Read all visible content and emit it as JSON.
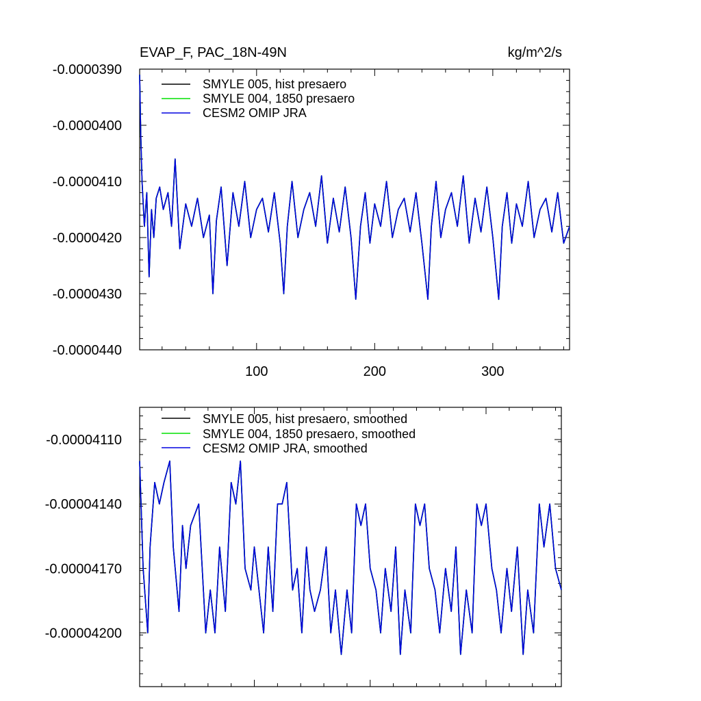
{
  "chart_data": [
    {
      "type": "line",
      "title": "EVAP_F, PAC_18N-49N",
      "units": "kg/m^2/s",
      "xlabel": "",
      "ylabel": "",
      "xlim": [
        1,
        365
      ],
      "ylim": [
        -4.4e-05,
        -3.9e-05
      ],
      "xticks": [
        100,
        200,
        300
      ],
      "xtick_labels": [
        "100",
        "200",
        "300"
      ],
      "yticks": [
        -3.9e-05,
        -4e-05,
        -4.1e-05,
        -4.2e-05,
        -4.3e-05,
        -4.4e-05
      ],
      "ytick_labels": [
        "-0.0000390",
        "-0.0000400",
        "-0.0000410",
        "-0.0000420",
        "-0.0000430",
        "-0.0000440"
      ],
      "legend_position": "top-left",
      "series": [
        {
          "name": "SMYLE 005, hist presaero",
          "color": "#000000"
        },
        {
          "name": "SMYLE 004, 1850 presaero",
          "color": "#00e000"
        },
        {
          "name": "CESM2 OMIP JRA",
          "color": "#0000e0"
        }
      ],
      "series_values_note": "",
      "keypoints": {
        "x": [
          1,
          2,
          3,
          5,
          7,
          9,
          11,
          13,
          15,
          18,
          21,
          25,
          28,
          31,
          35,
          40,
          45,
          50,
          55,
          60,
          63,
          66,
          70,
          75,
          80,
          85,
          90,
          95,
          100,
          105,
          110,
          115,
          120,
          123,
          126,
          130,
          135,
          140,
          145,
          150,
          155,
          160,
          165,
          170,
          175,
          180,
          184,
          188,
          192,
          196,
          200,
          205,
          210,
          215,
          220,
          225,
          230,
          235,
          240,
          245,
          248,
          252,
          256,
          260,
          265,
          270,
          275,
          280,
          285,
          290,
          295,
          300,
          305,
          308,
          312,
          316,
          320,
          325,
          330,
          335,
          340,
          345,
          350,
          355,
          360,
          365
        ],
        "y": [
          -3.91e-05,
          -4.02e-05,
          -4.1e-05,
          -4.18e-05,
          -4.12e-05,
          -4.27e-05,
          -4.15e-05,
          -4.2e-05,
          -4.13e-05,
          -4.11e-05,
          -4.15e-05,
          -4.12e-05,
          -4.18e-05,
          -4.06e-05,
          -4.22e-05,
          -4.14e-05,
          -4.18e-05,
          -4.13e-05,
          -4.2e-05,
          -4.16e-05,
          -4.3e-05,
          -4.17e-05,
          -4.11e-05,
          -4.25e-05,
          -4.12e-05,
          -4.18e-05,
          -4.1e-05,
          -4.2e-05,
          -4.15e-05,
          -4.13e-05,
          -4.19e-05,
          -4.12e-05,
          -4.21e-05,
          -4.3e-05,
          -4.18e-05,
          -4.1e-05,
          -4.2e-05,
          -4.15e-05,
          -4.12e-05,
          -4.18e-05,
          -4.09e-05,
          -4.21e-05,
          -4.13e-05,
          -4.19e-05,
          -4.11e-05,
          -4.2e-05,
          -4.31e-05,
          -4.18e-05,
          -4.12e-05,
          -4.21e-05,
          -4.14e-05,
          -4.18e-05,
          -4.1e-05,
          -4.2e-05,
          -4.15e-05,
          -4.13e-05,
          -4.19e-05,
          -4.12e-05,
          -4.21e-05,
          -4.31e-05,
          -4.18e-05,
          -4.1e-05,
          -4.2e-05,
          -4.15e-05,
          -4.12e-05,
          -4.18e-05,
          -4.09e-05,
          -4.21e-05,
          -4.13e-05,
          -4.19e-05,
          -4.11e-05,
          -4.2e-05,
          -4.31e-05,
          -4.18e-05,
          -4.12e-05,
          -4.21e-05,
          -4.14e-05,
          -4.18e-05,
          -4.1e-05,
          -4.2e-05,
          -4.15e-05,
          -4.13e-05,
          -4.19e-05,
          -4.12e-05,
          -4.21e-05,
          -4.18e-05
        ]
      }
    },
    {
      "type": "line",
      "title": "",
      "xlabel": "",
      "ylabel": "",
      "xlim": [
        1,
        365
      ],
      "ylim": [
        -4.225e-05,
        -4.095e-05
      ],
      "xticks": [
        100,
        200,
        300
      ],
      "xtick_labels": [],
      "yticks": [
        -4.11e-05,
        -4.14e-05,
        -4.17e-05,
        -4.2e-05
      ],
      "ytick_labels": [
        "-0.00004110",
        "-0.00004140",
        "-0.00004170",
        "-0.00004200"
      ],
      "legend_position": "top-left",
      "series": [
        {
          "name": "SMYLE 005, hist presaero, smoothed",
          "color": "#000000"
        },
        {
          "name": "SMYLE 004, 1850 presaero, smoothed",
          "color": "#00e000"
        },
        {
          "name": "CESM2 OMIP JRA, smoothed",
          "color": "#0000e0"
        }
      ],
      "keypoints": {
        "x": [
          1,
          4,
          8,
          10,
          14,
          18,
          22,
          27,
          30,
          35,
          38,
          41,
          45,
          52,
          55,
          58,
          62,
          66,
          70,
          75,
          80,
          84,
          88,
          92,
          97,
          100,
          104,
          108,
          112,
          116,
          120,
          124,
          128,
          133,
          137,
          141,
          145,
          148,
          152,
          157,
          162,
          166,
          170,
          175,
          180,
          184,
          188,
          192,
          196,
          200,
          205,
          209,
          213,
          218,
          222,
          226,
          230,
          235,
          239,
          243,
          247,
          251,
          256,
          260,
          265,
          270,
          274,
          278,
          283,
          288,
          292,
          296,
          300,
          305,
          309,
          313,
          318,
          322,
          327,
          332,
          336,
          341,
          346,
          350,
          355,
          360,
          365
        ],
        "y": [
          -4.12e-05,
          -4.17e-05,
          -4.2e-05,
          -4.16e-05,
          -4.13e-05,
          -4.14e-05,
          -4.13e-05,
          -4.12e-05,
          -4.16e-05,
          -4.19e-05,
          -4.15e-05,
          -4.17e-05,
          -4.15e-05,
          -4.14e-05,
          -4.17e-05,
          -4.2e-05,
          -4.18e-05,
          -4.2e-05,
          -4.16e-05,
          -4.19e-05,
          -4.13e-05,
          -4.14e-05,
          -4.12e-05,
          -4.17e-05,
          -4.18e-05,
          -4.16e-05,
          -4.18e-05,
          -4.2e-05,
          -4.16e-05,
          -4.19e-05,
          -4.14e-05,
          -4.14e-05,
          -4.13e-05,
          -4.18e-05,
          -4.17e-05,
          -4.2e-05,
          -4.16e-05,
          -4.18e-05,
          -4.19e-05,
          -4.18e-05,
          -4.16e-05,
          -4.2e-05,
          -4.18e-05,
          -4.21e-05,
          -4.18e-05,
          -4.2e-05,
          -4.14e-05,
          -4.15e-05,
          -4.14e-05,
          -4.17e-05,
          -4.18e-05,
          -4.2e-05,
          -4.17e-05,
          -4.19e-05,
          -4.16e-05,
          -4.21e-05,
          -4.18e-05,
          -4.2e-05,
          -4.14e-05,
          -4.15e-05,
          -4.14e-05,
          -4.17e-05,
          -4.18e-05,
          -4.2e-05,
          -4.17e-05,
          -4.19e-05,
          -4.16e-05,
          -4.21e-05,
          -4.18e-05,
          -4.2e-05,
          -4.14e-05,
          -4.15e-05,
          -4.14e-05,
          -4.17e-05,
          -4.18e-05,
          -4.2e-05,
          -4.17e-05,
          -4.19e-05,
          -4.16e-05,
          -4.21e-05,
          -4.18e-05,
          -4.2e-05,
          -4.14e-05,
          -4.16e-05,
          -4.14e-05,
          -4.17e-05,
          -4.18e-05
        ]
      }
    }
  ]
}
